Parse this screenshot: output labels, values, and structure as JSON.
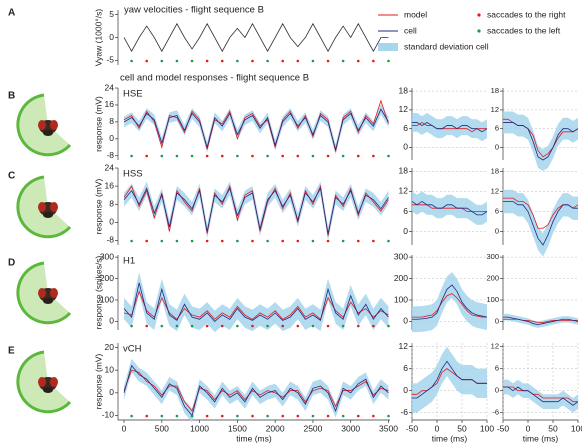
{
  "legend": [
    {
      "name": "model",
      "color": "#e41a1c"
    },
    {
      "name": "cell",
      "color": "#1f2a80"
    },
    {
      "name": "saccades to the right",
      "color": "#e41a1c"
    },
    {
      "name": "saccades to the left",
      "color": "#1a9a50"
    },
    {
      "name": "standard deviation cell",
      "color": "#a6d5ec"
    }
  ],
  "saccades_right": [
    300,
    1100,
    1300,
    1700,
    2100,
    2300,
    2700,
    3100,
    3300
  ],
  "saccades_left": [
    100,
    500,
    700,
    900,
    1500,
    1900,
    2500,
    2900,
    3500
  ],
  "chart_data": [
    {
      "type": "line",
      "panel": "A",
      "title": "yaw velocities - flight sequence B",
      "ylabel": "Vyaw (1000°/s)",
      "color": "#333333",
      "xlim": [
        -80,
        3520
      ],
      "ylim": [
        -6,
        6
      ],
      "yticks": [
        -5,
        0,
        5
      ],
      "x": [
        0,
        100,
        200,
        300,
        400,
        500,
        600,
        700,
        800,
        900,
        1000,
        1100,
        1200,
        1300,
        1400,
        1500,
        1600,
        1700,
        1800,
        1900,
        2000,
        2100,
        2200,
        2300,
        2400,
        2500,
        2600,
        2700,
        2800,
        2900,
        3000,
        3100,
        3200,
        3300,
        3400,
        3500
      ],
      "values": [
        0,
        -3,
        0,
        2.5,
        0,
        -3,
        0,
        3,
        0,
        -2.5,
        0,
        3,
        0,
        -3,
        0,
        2,
        0,
        3,
        0,
        -3,
        0,
        3,
        0,
        -2,
        0,
        3,
        0,
        -3,
        0,
        2.5,
        0,
        3,
        0,
        -3,
        0,
        0
      ]
    },
    {
      "type": "line",
      "panel": "B",
      "heading": "cell and model  responses - flight sequence B",
      "title": "HSE",
      "ylabel": "response (mV)",
      "xlim": [
        -80,
        3520
      ],
      "ylim": [
        -10,
        24
      ],
      "yticks": [
        -8,
        0,
        8,
        16,
        24
      ],
      "sd": 2.5,
      "cell": [
        8,
        10,
        6,
        12,
        9,
        -2,
        10,
        11,
        4,
        12,
        8,
        -4,
        10,
        6,
        12,
        2,
        9,
        11,
        5,
        10,
        -3,
        8,
        12,
        6,
        10,
        2,
        11,
        8,
        -5,
        9,
        12,
        4,
        10,
        6,
        14,
        8
      ],
      "model": [
        9,
        11,
        5,
        13,
        8,
        -4,
        11,
        10,
        3,
        13,
        9,
        -5,
        9,
        7,
        13,
        0,
        10,
        12,
        6,
        9,
        -4,
        9,
        13,
        5,
        11,
        1,
        12,
        9,
        -6,
        10,
        13,
        3,
        11,
        7,
        18,
        7
      ]
    },
    {
      "type": "line",
      "panel": "C",
      "title": "HSS",
      "ylabel": "response (mV)",
      "xlim": [
        -80,
        3520
      ],
      "ylim": [
        -10,
        24
      ],
      "yticks": [
        -8,
        0,
        8,
        16,
        24
      ],
      "sd": 3,
      "cell": [
        10,
        14,
        8,
        15,
        4,
        12,
        -2,
        13,
        10,
        6,
        14,
        -4,
        12,
        9,
        15,
        3,
        11,
        13,
        -3,
        10,
        14,
        7,
        12,
        1,
        13,
        9,
        15,
        -5,
        11,
        8,
        14,
        4,
        12,
        10,
        6,
        11
      ],
      "model": [
        11,
        16,
        7,
        14,
        2,
        13,
        -4,
        14,
        9,
        5,
        15,
        -5,
        13,
        8,
        16,
        1,
        12,
        14,
        -4,
        9,
        15,
        6,
        13,
        0,
        14,
        8,
        16,
        -6,
        12,
        7,
        15,
        3,
        13,
        9,
        5,
        10
      ]
    },
    {
      "type": "line",
      "panel": "D",
      "title": "H1",
      "ylabel": "response (spikes/s)",
      "xlim": [
        -80,
        3520
      ],
      "ylim": [
        -40,
        310
      ],
      "yticks": [
        0,
        100,
        200,
        300
      ],
      "sd": 50,
      "cell": [
        60,
        20,
        180,
        40,
        10,
        150,
        30,
        5,
        80,
        20,
        10,
        40,
        0,
        30,
        10,
        60,
        20,
        5,
        30,
        10,
        40,
        5,
        20,
        60,
        10,
        30,
        5,
        150,
        40,
        10,
        120,
        30,
        80,
        10,
        60,
        20
      ],
      "model": [
        40,
        30,
        140,
        50,
        20,
        110,
        40,
        10,
        60,
        30,
        20,
        50,
        10,
        40,
        20,
        70,
        30,
        10,
        40,
        20,
        50,
        10,
        30,
        70,
        20,
        40,
        10,
        110,
        50,
        20,
        90,
        40,
        60,
        20,
        50,
        30
      ]
    },
    {
      "type": "line",
      "panel": "E",
      "title": "vCH",
      "ylabel": "response (mV)",
      "xlabel": "time (ms)",
      "xlim": [
        -80,
        3520
      ],
      "xticks": [
        0,
        500,
        1000,
        1500,
        2000,
        2500,
        3000,
        3500
      ],
      "ylim": [
        -12,
        22
      ],
      "yticks": [
        -10,
        0,
        10,
        20
      ],
      "sd": 3,
      "cell": [
        0,
        12,
        8,
        6,
        2,
        -2,
        4,
        2,
        -6,
        -10,
        3,
        0,
        -4,
        2,
        -2,
        0,
        -4,
        2,
        -2,
        0,
        1,
        -3,
        2,
        0,
        -5,
        2,
        3,
        0,
        -8,
        2,
        0,
        4,
        6,
        -2,
        3,
        0
      ],
      "model": [
        1,
        10,
        9,
        5,
        3,
        -1,
        3,
        3,
        -4,
        -8,
        2,
        1,
        -3,
        1,
        -1,
        1,
        -3,
        1,
        -1,
        1,
        0,
        -2,
        1,
        1,
        -4,
        1,
        2,
        1,
        -6,
        1,
        1,
        3,
        5,
        -1,
        2,
        1
      ]
    },
    {
      "type": "line",
      "xlim": [
        -50,
        100
      ],
      "ylim": [
        -4,
        19
      ],
      "yticks": [
        0,
        6,
        12,
        18
      ],
      "grid": true,
      "sd": 3,
      "x": [
        -50,
        -40,
        -30,
        -20,
        -10,
        0,
        10,
        20,
        30,
        40,
        50,
        60,
        70,
        80,
        90,
        100
      ],
      "cell": [
        8,
        8,
        7,
        8,
        7,
        6,
        6,
        7,
        7,
        6,
        7,
        7,
        6,
        6,
        5,
        6
      ],
      "model": [
        7,
        7,
        8,
        7,
        7,
        6,
        6,
        6,
        6,
        6,
        6,
        6,
        5,
        6,
        6,
        6
      ]
    },
    {
      "type": "line",
      "xlim": [
        -50,
        100
      ],
      "ylim": [
        -4,
        19
      ],
      "yticks": [
        0,
        6,
        12,
        18
      ],
      "grid": true,
      "sd": 3.5,
      "x": [
        -50,
        -40,
        -30,
        -20,
        -10,
        0,
        10,
        20,
        30,
        40,
        50,
        60,
        70,
        80,
        90,
        100
      ],
      "cell": [
        8,
        8,
        8,
        7,
        7,
        6,
        2,
        -3,
        -4,
        -3,
        0,
        4,
        6,
        6,
        5,
        6
      ],
      "model": [
        9,
        9,
        8,
        7,
        7,
        6,
        4,
        -1,
        -3,
        -2,
        0,
        3,
        5,
        5,
        5,
        6
      ]
    },
    {
      "type": "line",
      "xlim": [
        -50,
        100
      ],
      "ylim": [
        -4,
        19
      ],
      "yticks": [
        0,
        6,
        12,
        18
      ],
      "grid": true,
      "sd": 3,
      "x": [
        -50,
        -40,
        -30,
        -20,
        -10,
        0,
        10,
        20,
        30,
        40,
        50,
        60,
        70,
        80,
        90,
        100
      ],
      "cell": [
        9,
        8,
        9,
        8,
        8,
        7,
        7,
        8,
        8,
        7,
        7,
        7,
        6,
        5,
        5,
        6
      ],
      "model": [
        8,
        8,
        8,
        8,
        7,
        7,
        7,
        7,
        7,
        7,
        7,
        6,
        6,
        6,
        6,
        6
      ]
    },
    {
      "type": "line",
      "xlim": [
        -50,
        100
      ],
      "ylim": [
        -4,
        19
      ],
      "yticks": [
        0,
        6,
        12,
        18
      ],
      "grid": true,
      "sd": 3.5,
      "x": [
        -50,
        -40,
        -30,
        -20,
        -10,
        0,
        10,
        20,
        30,
        40,
        50,
        60,
        70,
        80,
        90,
        100
      ],
      "cell": [
        9,
        9,
        9,
        8,
        8,
        6,
        2,
        -2,
        -4,
        -1,
        3,
        6,
        8,
        8,
        7,
        7
      ],
      "model": [
        10,
        10,
        10,
        9,
        9,
        8,
        5,
        1,
        1,
        2,
        5,
        7,
        8,
        8,
        7,
        8
      ]
    },
    {
      "type": "line",
      "xlim": [
        -50,
        100
      ],
      "ylim": [
        -40,
        310
      ],
      "yticks": [
        0,
        100,
        200,
        300
      ],
      "grid": true,
      "sd": 60,
      "x": [
        -50,
        -40,
        -30,
        -20,
        -10,
        0,
        10,
        20,
        30,
        40,
        50,
        60,
        70,
        80,
        90,
        100
      ],
      "cell": [
        10,
        10,
        12,
        15,
        20,
        40,
        100,
        150,
        170,
        140,
        90,
        60,
        40,
        30,
        25,
        20
      ],
      "model": [
        20,
        20,
        20,
        25,
        30,
        50,
        90,
        120,
        130,
        110,
        80,
        50,
        30,
        25,
        20,
        20
      ]
    },
    {
      "type": "line",
      "xlim": [
        -50,
        100
      ],
      "ylim": [
        -40,
        310
      ],
      "yticks": [
        0,
        100,
        200,
        300
      ],
      "grid": true,
      "sd": 15,
      "x": [
        -50,
        -40,
        -30,
        -20,
        -10,
        0,
        10,
        20,
        30,
        40,
        50,
        60,
        70,
        80,
        90,
        100
      ],
      "cell": [
        20,
        20,
        15,
        10,
        5,
        0,
        -10,
        -15,
        -10,
        -5,
        0,
        5,
        10,
        10,
        5,
        0
      ],
      "model": [
        10,
        10,
        10,
        10,
        5,
        5,
        0,
        -5,
        -5,
        0,
        5,
        5,
        5,
        5,
        5,
        5
      ]
    },
    {
      "type": "line",
      "xlim": [
        -50,
        100
      ],
      "xticks": [
        -50,
        0,
        50,
        100
      ],
      "xlabel": "time (ms)",
      "ylim": [
        -8,
        13
      ],
      "yticks": [
        -6,
        0,
        6,
        12
      ],
      "grid": true,
      "sd": 4,
      "x": [
        -50,
        -40,
        -30,
        -20,
        -10,
        0,
        10,
        20,
        30,
        40,
        50,
        60,
        70,
        80,
        90,
        100
      ],
      "cell": [
        -2,
        -2,
        -1,
        0,
        1,
        3,
        6,
        8,
        6,
        4,
        3,
        3,
        3,
        2,
        2,
        2
      ],
      "model": [
        -1,
        -1,
        0,
        0,
        1,
        2,
        5,
        6,
        5,
        4,
        3,
        3,
        3,
        2,
        2,
        2
      ]
    },
    {
      "type": "line",
      "xlim": [
        -50,
        100
      ],
      "xticks": [
        -50,
        0,
        50,
        100
      ],
      "xlabel": "time (ms)",
      "ylim": [
        -8,
        13
      ],
      "yticks": [
        -6,
        0,
        6,
        12
      ],
      "grid": true,
      "sd": 2,
      "x": [
        -50,
        -40,
        -30,
        -20,
        -10,
        0,
        10,
        20,
        30,
        40,
        50,
        60,
        70,
        80,
        90,
        100
      ],
      "cell": [
        1,
        1,
        0,
        1,
        0,
        0,
        -1,
        -2,
        -3,
        -3,
        -3,
        -3,
        -2,
        -3,
        -4,
        -3
      ],
      "model": [
        1,
        1,
        1,
        0,
        0,
        0,
        -1,
        -1,
        -2,
        -2,
        -2,
        -2,
        -2,
        -2,
        -3,
        -3
      ]
    }
  ]
}
